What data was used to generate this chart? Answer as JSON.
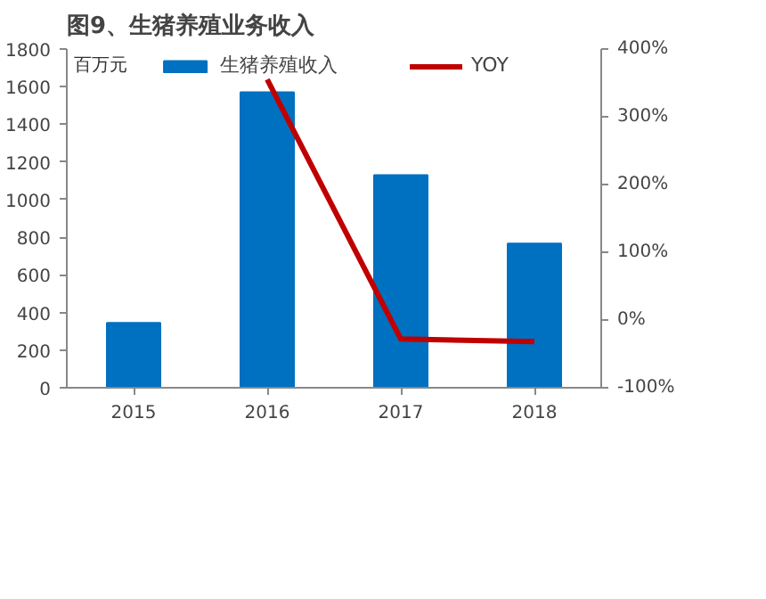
{
  "chart_data": {
    "type": "bar",
    "title": "图9、生猪养殖业务收入",
    "ylabel": "百万元",
    "categories": [
      "2015",
      "2016",
      "2017",
      "2018"
    ],
    "series": [
      {
        "name": "生猪养殖收入",
        "color": "#0070c0",
        "values": [
          345,
          1570,
          1130,
          766
        ]
      },
      {
        "name": "YOY",
        "type": "line",
        "axis": "y2",
        "color": "#c00000",
        "values": [
          null,
          355,
          -28,
          -32
        ]
      }
    ],
    "ylim": [
      0,
      1800
    ],
    "yticks": [
      0,
      200,
      400,
      600,
      800,
      1000,
      1200,
      1400,
      1600,
      1800
    ],
    "y2lim": [
      -100,
      400
    ],
    "y2ticks": [
      {
        "value": -100,
        "label": "-100%"
      },
      {
        "value": 0,
        "label": "0%"
      },
      {
        "value": 100,
        "label": "100%"
      },
      {
        "value": 200,
        "label": "200%"
      },
      {
        "value": 300,
        "label": "300%"
      },
      {
        "value": 400,
        "label": "400%"
      }
    ],
    "grid": false,
    "legend": "top",
    "marker": "none",
    "line_style": "solid"
  }
}
